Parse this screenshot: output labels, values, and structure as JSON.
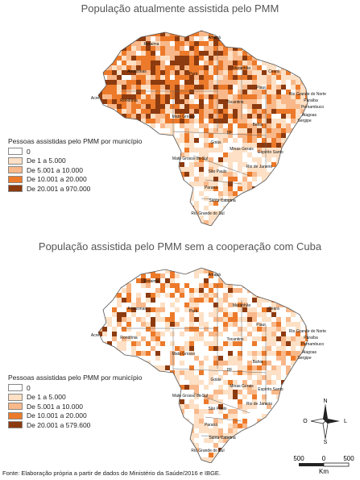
{
  "maps": [
    {
      "title": "População atualmente assistida pelo PMM",
      "legend_title": "Pessoas assistidas pelo PMM por município",
      "legend": [
        {
          "label": "0",
          "color": "#ffffff"
        },
        {
          "label": "De 1 a 5.000",
          "color": "#fde0c5"
        },
        {
          "label": "De 5.001 a 10.000",
          "color": "#f9b88a"
        },
        {
          "label": "De 10.001 a 20.000",
          "color": "#ec7a2a"
        },
        {
          "label": "De 20.001 a 970.000",
          "color": "#8c3a0f"
        }
      ],
      "state_labels": [
        "Roraima",
        "Amapá",
        "Amazonas",
        "Pará",
        "Maranhão",
        "Ceará",
        "Rio Grande do Norte",
        "Paraíba",
        "Pernambuco",
        "Alagoas",
        "Sergipe",
        "Acre",
        "Rondônia",
        "Tocantins",
        "Piauí",
        "Bahia",
        "Mato Grosso",
        "Goiás",
        "DF",
        "Mato Grosso do Sul",
        "Minas Gerais",
        "Espírito Santo",
        "São Paulo",
        "Rio de Janeiro",
        "Paraná",
        "Santa Catarina",
        "Rio Grande do Sul"
      ]
    },
    {
      "title": "População assistida pelo PMM sem a cooperação com Cuba",
      "legend_title": "Pessoas assistidas pelo PMM por município",
      "legend": [
        {
          "label": "0",
          "color": "#ffffff"
        },
        {
          "label": "De 1 a 5.000",
          "color": "#fde0c5"
        },
        {
          "label": "De 5.001 a 10.000",
          "color": "#f9b88a"
        },
        {
          "label": "De 10.001 a 20.000",
          "color": "#ec7a2a"
        },
        {
          "label": "De 20.001 a 579.600",
          "color": "#8c3a0f"
        }
      ],
      "state_labels": [
        "Roraima",
        "Amapá",
        "Amazonas",
        "Pará",
        "Maranhão",
        "Ceará",
        "Rio Grande do Norte",
        "Paraíba",
        "Pernambuco",
        "Alagoas",
        "Sergipe",
        "Acre",
        "Rondônia",
        "Tocantins",
        "Piauí",
        "Bahia",
        "Mato Grosso",
        "Goiás",
        "DF",
        "Mato Grosso do Sul",
        "Minas Gerais",
        "Espírito Santo",
        "São Paulo",
        "Rio de Janeiro",
        "Paraná",
        "Santa Catarina",
        "Rio Grande do Sul"
      ]
    }
  ],
  "compass": {
    "n": "N",
    "s": "S",
    "e": "L",
    "w": "O"
  },
  "scale": {
    "ticks": [
      "500",
      "0",
      "500"
    ],
    "unit": "Km"
  },
  "source": "Fonte: Elaboração própria a partir de dados do Ministério da Saúde/2016 e IBGE."
}
